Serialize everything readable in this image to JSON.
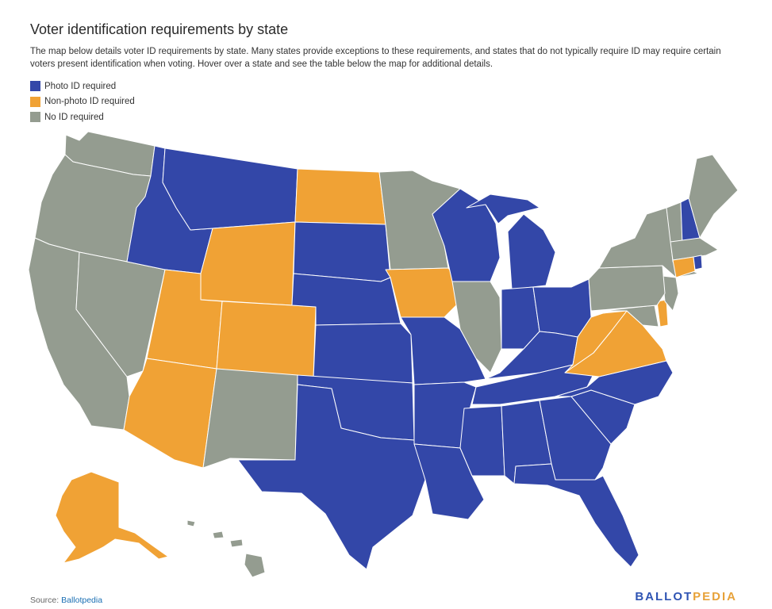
{
  "title": "Voter identification requirements by state",
  "description": "The map below details voter ID requirements by state. Many states provide exceptions to these requirements, and states that do not typically require ID may require certain voters present identification when voting. Hover over a state and see the table below the map for additional details.",
  "legend": [
    {
      "label": "Photo ID required",
      "color": "#3347a8",
      "category": "photo"
    },
    {
      "label": "Non-photo ID required",
      "color": "#f0a235",
      "category": "nonphoto"
    },
    {
      "label": "No ID required",
      "color": "#949c90",
      "category": "none"
    }
  ],
  "colors": {
    "photo": "#3347a8",
    "nonphoto": "#f0a235",
    "none": "#949c90",
    "border": "#ffffff"
  },
  "states": {
    "WA": "none",
    "OR": "none",
    "CA": "none",
    "NV": "none",
    "ID": "photo",
    "MT": "photo",
    "WY": "nonphoto",
    "UT": "nonphoto",
    "CO": "nonphoto",
    "AZ": "nonphoto",
    "NM": "none",
    "ND": "nonphoto",
    "SD": "photo",
    "NE": "photo",
    "KS": "photo",
    "OK": "photo",
    "TX": "photo",
    "MN": "none",
    "IA": "nonphoto",
    "MO": "photo",
    "AR": "photo",
    "LA": "photo",
    "WI": "photo",
    "IL": "none",
    "MI": "photo",
    "IN": "photo",
    "OH": "photo",
    "KY": "photo",
    "TN": "photo",
    "MS": "photo",
    "AL": "photo",
    "GA": "photo",
    "FL": "photo",
    "SC": "photo",
    "NC": "photo",
    "VA": "nonphoto",
    "WV": "nonphoto",
    "MD": "none",
    "DE": "nonphoto",
    "NJ": "none",
    "PA": "none",
    "NY": "none",
    "VT": "none",
    "NH": "photo",
    "ME": "none",
    "MA": "none",
    "CT": "nonphoto",
    "RI": "photo",
    "AK": "nonphoto",
    "HI": "none"
  },
  "source": {
    "label": "Source:",
    "name": "Ballotpedia"
  },
  "brand": {
    "part1": "BALLOT",
    "part2": "PEDIA"
  }
}
